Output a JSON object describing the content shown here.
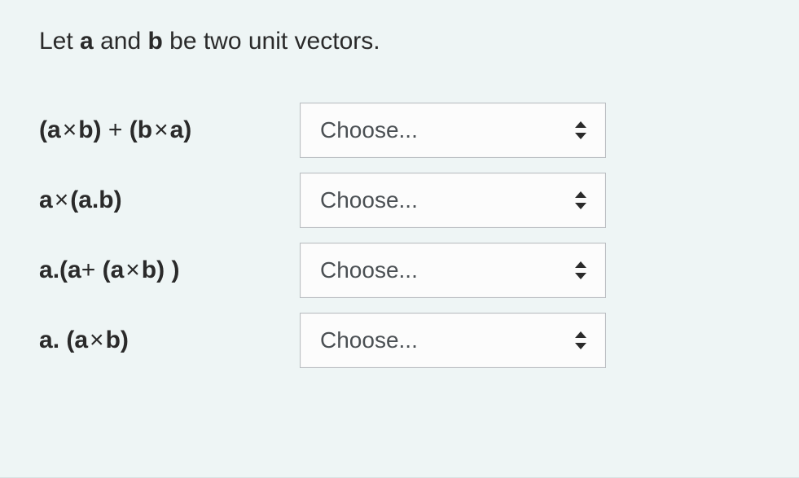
{
  "background_color": "#eef5f5",
  "text_color": "#2a2a2a",
  "select_bg": "#fcfcfc",
  "select_border": "#b9bdc1",
  "select_text_color": "#4b5054",
  "font_size_prompt": 30,
  "font_size_expr": 30,
  "font_size_select": 28,
  "prompt": {
    "prefix": "Let ",
    "a": "a",
    "mid": " and ",
    "b": "b",
    "suffix": " be two unit vectors."
  },
  "placeholder": "Choose...",
  "rows": [
    {
      "expr_html": "(<b>a</b><span class='cross'>×</span><b>b</b>)<span class='op'> + </span>(<b>b</b><span class='cross'>×</span><b>a</b>)",
      "value": "Choose..."
    },
    {
      "expr_html": "<b>a</b><span class='cross'>×</span>(<b>a</b>.<b>b</b>)",
      "value": "Choose..."
    },
    {
      "expr_html": "<b>a</b>.(<b>a</b><span class='op'>+ </span>(<b>a</b><span class='cross'>×</span><b>b</b>)<span class='op'> </span>)",
      "value": "Choose..."
    },
    {
      "expr_html": "<b>a</b>. (<b>a</b><span class='cross'>×</span><b>b</b>)",
      "value": "Choose..."
    }
  ]
}
